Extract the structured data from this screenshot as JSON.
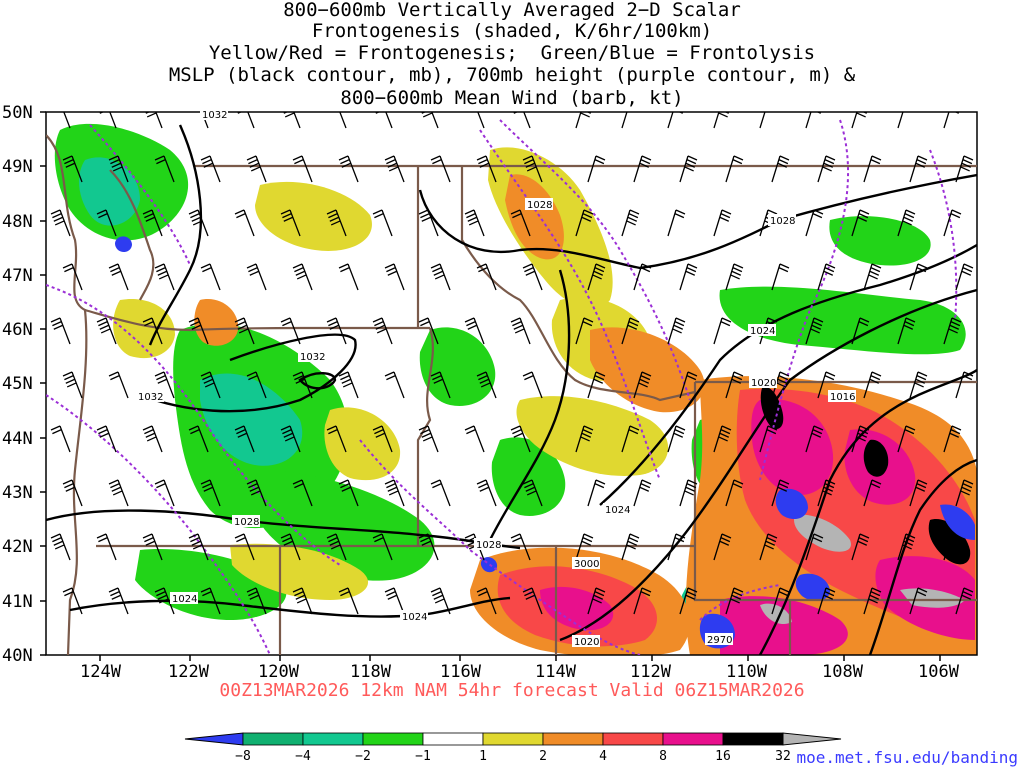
{
  "title": {
    "lines": [
      "800−600mb Vertically Averaged 2−D Scalar",
      "Frontogenesis (shaded, K/6hr/100km)",
      "Yellow/Red = Frontogenesis;  Green/Blue = Frontolysis",
      "MSLP (black contour, mb), 700mb height (purple contour, m) &",
      "800−600mb Mean Wind (barb, kt)"
    ]
  },
  "axes": {
    "lat_labels": [
      "50N",
      "49N",
      "48N",
      "47N",
      "46N",
      "45N",
      "44N",
      "43N",
      "42N",
      "41N",
      "40N"
    ],
    "lon_labels": [
      "124W",
      "122W",
      "120W",
      "118W",
      "116W",
      "114W",
      "112W",
      "110W",
      "108W",
      "106W"
    ]
  },
  "contour_labels": {
    "mslp": [
      "1032",
      "1032",
      "1032",
      "1028",
      "1028",
      "1028",
      "1028",
      "1024",
      "1024",
      "1024",
      "1024",
      "1020",
      "1020",
      "1016"
    ],
    "height": [
      "3000",
      "2970"
    ]
  },
  "forecast": "00Z13MAR2026 12km NAM 54hr forecast Valid 06Z15MAR2026",
  "colorbar": {
    "labels": [
      "−8",
      "−4",
      "−2",
      "−1",
      "1",
      "2",
      "4",
      "8",
      "16",
      "32"
    ],
    "colors": [
      "#2e3cf0",
      "#10b070",
      "#12c890",
      "#22d418",
      "#ffffff",
      "#e0d830",
      "#f08c28",
      "#f84848",
      "#e8108c",
      "#000000",
      "#b4b4b4"
    ]
  },
  "credit": "moe.met.fsu.edu/banding",
  "colors": {
    "state_borders": "#7a5a4a",
    "mslp_contours": "#000000",
    "height_contours": "#9b2fd6",
    "wind_barbs": "#000000"
  }
}
